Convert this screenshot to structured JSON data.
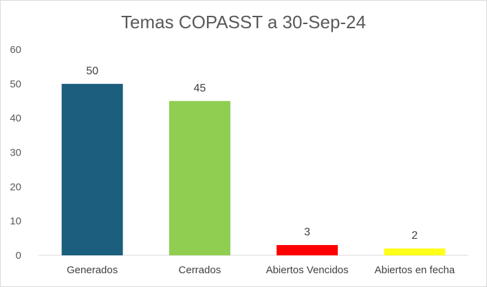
{
  "chart_data": {
    "type": "bar",
    "title": "Temas COPASST a 30-Sep-24",
    "categories": [
      "Generados",
      "Cerrados",
      "Abiertos Vencidos",
      "Abiertos en fecha"
    ],
    "values": [
      50,
      45,
      3,
      2
    ],
    "bar_colors": [
      "#1b5e7e",
      "#8fce50",
      "#ff0000",
      "#ffff1a"
    ],
    "data_labels": [
      "50",
      "45",
      "3",
      "2"
    ],
    "y_ticks": [
      "0",
      "10",
      "20",
      "30",
      "40",
      "50",
      "60"
    ],
    "ylim": [
      0,
      60
    ],
    "grid": false,
    "legend": "none",
    "xlabel": "",
    "ylabel": ""
  }
}
